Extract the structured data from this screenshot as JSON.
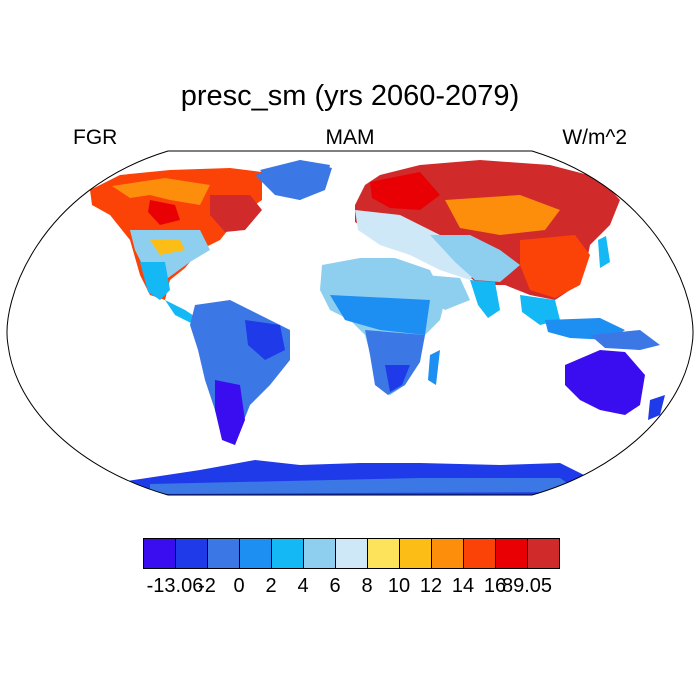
{
  "title": "presc_sm (yrs 2060-2079)",
  "left_label": "FGR",
  "center_label": "MAM",
  "right_label": "W/m^2",
  "colorbar": {
    "colors": [
      "#3a0df0",
      "#1f3ae8",
      "#3b78e6",
      "#1e8ff2",
      "#13b8f4",
      "#8ecfef",
      "#cfe8f7",
      "#fde25c",
      "#fdbd17",
      "#fd8e0c",
      "#fb4207",
      "#e80004",
      "#d12a2a"
    ],
    "tick_labels": [
      "-13.06",
      "-2",
      "0",
      "2",
      "4",
      "6",
      "8",
      "10",
      "12",
      "14",
      "16",
      "89.05"
    ]
  }
}
